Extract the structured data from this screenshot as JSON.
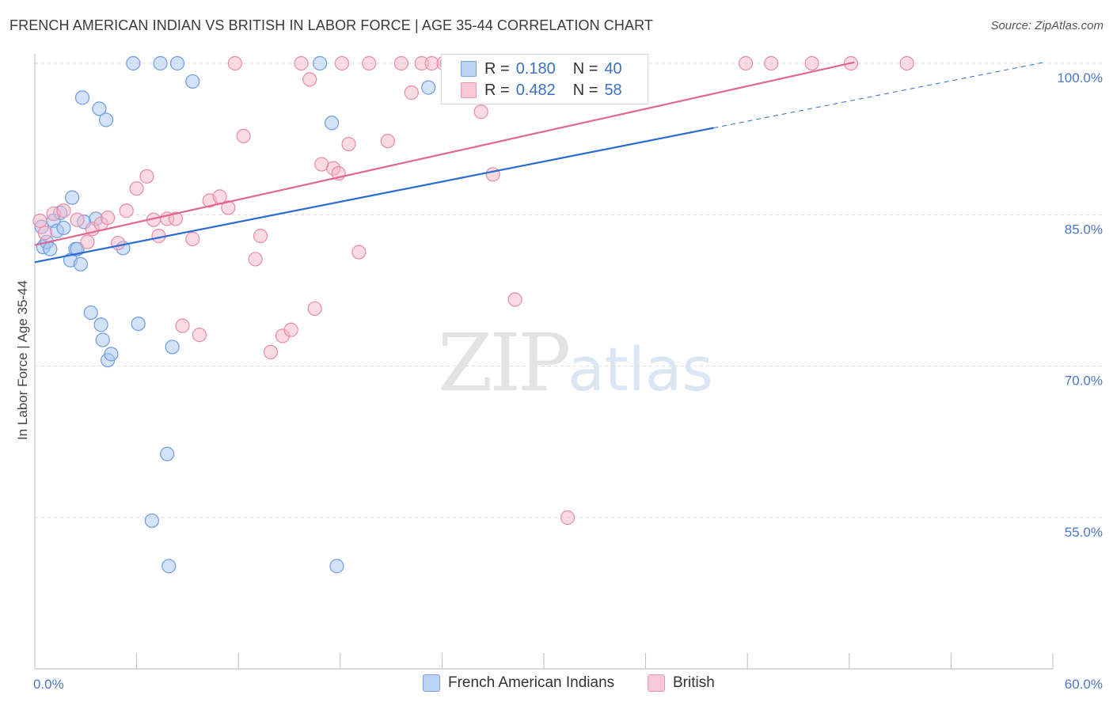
{
  "title": "FRENCH AMERICAN INDIAN VS BRITISH IN LABOR FORCE | AGE 35-44 CORRELATION CHART",
  "source": "Source: ZipAtlas.com",
  "watermark": {
    "zip": "ZIP",
    "atlas": "atlas"
  },
  "legend": {
    "rows": [
      {
        "r_label": "R =",
        "r_value": "0.180",
        "n_label": "N =",
        "n_value": "40"
      },
      {
        "r_label": "R =",
        "r_value": "0.482",
        "n_label": "N =",
        "n_value": "58"
      }
    ]
  },
  "bottom_legend": {
    "items": [
      "French American Indians",
      "British"
    ]
  },
  "colors": {
    "blue_fill": "#a8c6f0",
    "blue_stroke": "#6f9be0",
    "blue_line": "#2a6ccf",
    "pink_fill": "#f6b5c8",
    "pink_stroke": "#e88aa8",
    "pink_line": "#e0678f",
    "grid": "#dddddd",
    "tick_text": "#4a78c8"
  },
  "chart_data": {
    "type": "scatter",
    "title": "FRENCH AMERICAN INDIAN VS BRITISH IN LABOR FORCE | AGE 35-44 CORRELATION CHART",
    "ylabel": "In Labor Force | Age 35-44",
    "xlabel": "",
    "xlim": [
      0,
      60
    ],
    "ylim": [
      40,
      101
    ],
    "x_tick_labels": [
      "0.0%",
      "60.0%"
    ],
    "y_ticks": [
      100,
      85,
      70,
      55
    ],
    "y_tick_labels": [
      "100.0%",
      "85.0%",
      "70.0%",
      "55.0%"
    ],
    "series": [
      {
        "name": "French American Indians",
        "R": 0.18,
        "N": 40,
        "trend": {
          "x0": 0,
          "y0": 80.3,
          "x1": 40,
          "y1": 93.6,
          "dash_to_x": 59.5,
          "dash_to_y": 100.1
        },
        "points": [
          [
            0.4,
            83.8
          ],
          [
            0.5,
            81.8
          ],
          [
            0.7,
            82.3
          ],
          [
            0.9,
            81.6
          ],
          [
            1.1,
            84.4
          ],
          [
            1.3,
            83.4
          ],
          [
            1.5,
            85.2
          ],
          [
            1.7,
            83.7
          ],
          [
            2.1,
            80.5
          ],
          [
            2.2,
            86.7
          ],
          [
            2.4,
            81.6
          ],
          [
            2.5,
            81.6
          ],
          [
            2.7,
            80.1
          ],
          [
            2.8,
            96.6
          ],
          [
            2.9,
            84.3
          ],
          [
            3.3,
            75.3
          ],
          [
            3.6,
            84.6
          ],
          [
            3.8,
            95.5
          ],
          [
            3.9,
            74.1
          ],
          [
            4.0,
            72.6
          ],
          [
            4.2,
            94.4
          ],
          [
            4.3,
            70.6
          ],
          [
            4.5,
            71.2
          ],
          [
            5.2,
            81.7
          ],
          [
            5.8,
            100.0
          ],
          [
            6.1,
            74.2
          ],
          [
            6.9,
            54.7
          ],
          [
            7.4,
            100.0
          ],
          [
            7.8,
            61.3
          ],
          [
            7.9,
            50.2
          ],
          [
            8.1,
            71.9
          ],
          [
            8.4,
            100.0
          ],
          [
            9.3,
            98.2
          ],
          [
            16.8,
            100.0
          ],
          [
            17.5,
            94.1
          ],
          [
            17.8,
            50.2
          ],
          [
            23.2,
            97.6
          ],
          [
            24.3,
            100.0
          ],
          [
            28.8,
            100.0
          ],
          [
            35.4,
            100.0
          ]
        ]
      },
      {
        "name": "British",
        "R": 0.482,
        "N": 58,
        "trend": {
          "x0": 0,
          "y0": 82.0,
          "x1": 48.3,
          "y1": 100.1
        },
        "points": [
          [
            0.3,
            84.4
          ],
          [
            0.6,
            83.2
          ],
          [
            1.1,
            85.1
          ],
          [
            1.7,
            85.4
          ],
          [
            2.5,
            84.5
          ],
          [
            3.1,
            82.3
          ],
          [
            3.4,
            83.6
          ],
          [
            3.9,
            84.1
          ],
          [
            4.3,
            84.7
          ],
          [
            4.9,
            82.2
          ],
          [
            5.4,
            85.4
          ],
          [
            6.0,
            87.6
          ],
          [
            6.6,
            88.8
          ],
          [
            7.0,
            84.5
          ],
          [
            7.3,
            82.9
          ],
          [
            7.8,
            84.6
          ],
          [
            8.3,
            84.6
          ],
          [
            8.7,
            74.0
          ],
          [
            9.3,
            82.6
          ],
          [
            9.7,
            73.1
          ],
          [
            10.3,
            86.4
          ],
          [
            10.9,
            86.8
          ],
          [
            11.4,
            85.7
          ],
          [
            11.8,
            100.0
          ],
          [
            12.3,
            92.8
          ],
          [
            13.0,
            80.6
          ],
          [
            13.3,
            82.9
          ],
          [
            13.9,
            71.4
          ],
          [
            14.6,
            73.0
          ],
          [
            15.1,
            73.6
          ],
          [
            15.7,
            100.0
          ],
          [
            16.2,
            98.4
          ],
          [
            16.5,
            75.7
          ],
          [
            16.9,
            90.0
          ],
          [
            17.6,
            89.6
          ],
          [
            17.9,
            89.1
          ],
          [
            18.1,
            100.0
          ],
          [
            18.5,
            92.0
          ],
          [
            19.1,
            81.3
          ],
          [
            19.7,
            100.0
          ],
          [
            20.8,
            92.3
          ],
          [
            21.6,
            100.0
          ],
          [
            22.2,
            97.1
          ],
          [
            22.8,
            100.0
          ],
          [
            23.4,
            100.0
          ],
          [
            24.1,
            100.0
          ],
          [
            25.7,
            100.0
          ],
          [
            26.3,
            95.2
          ],
          [
            27.0,
            89.0
          ],
          [
            27.6,
            100.0
          ],
          [
            28.3,
            76.6
          ],
          [
            31.4,
            55.0
          ],
          [
            32.1,
            100.0
          ],
          [
            41.9,
            100.0
          ],
          [
            43.4,
            100.0
          ],
          [
            45.8,
            100.0
          ],
          [
            48.1,
            100.0
          ],
          [
            51.4,
            100.0
          ]
        ]
      }
    ]
  }
}
